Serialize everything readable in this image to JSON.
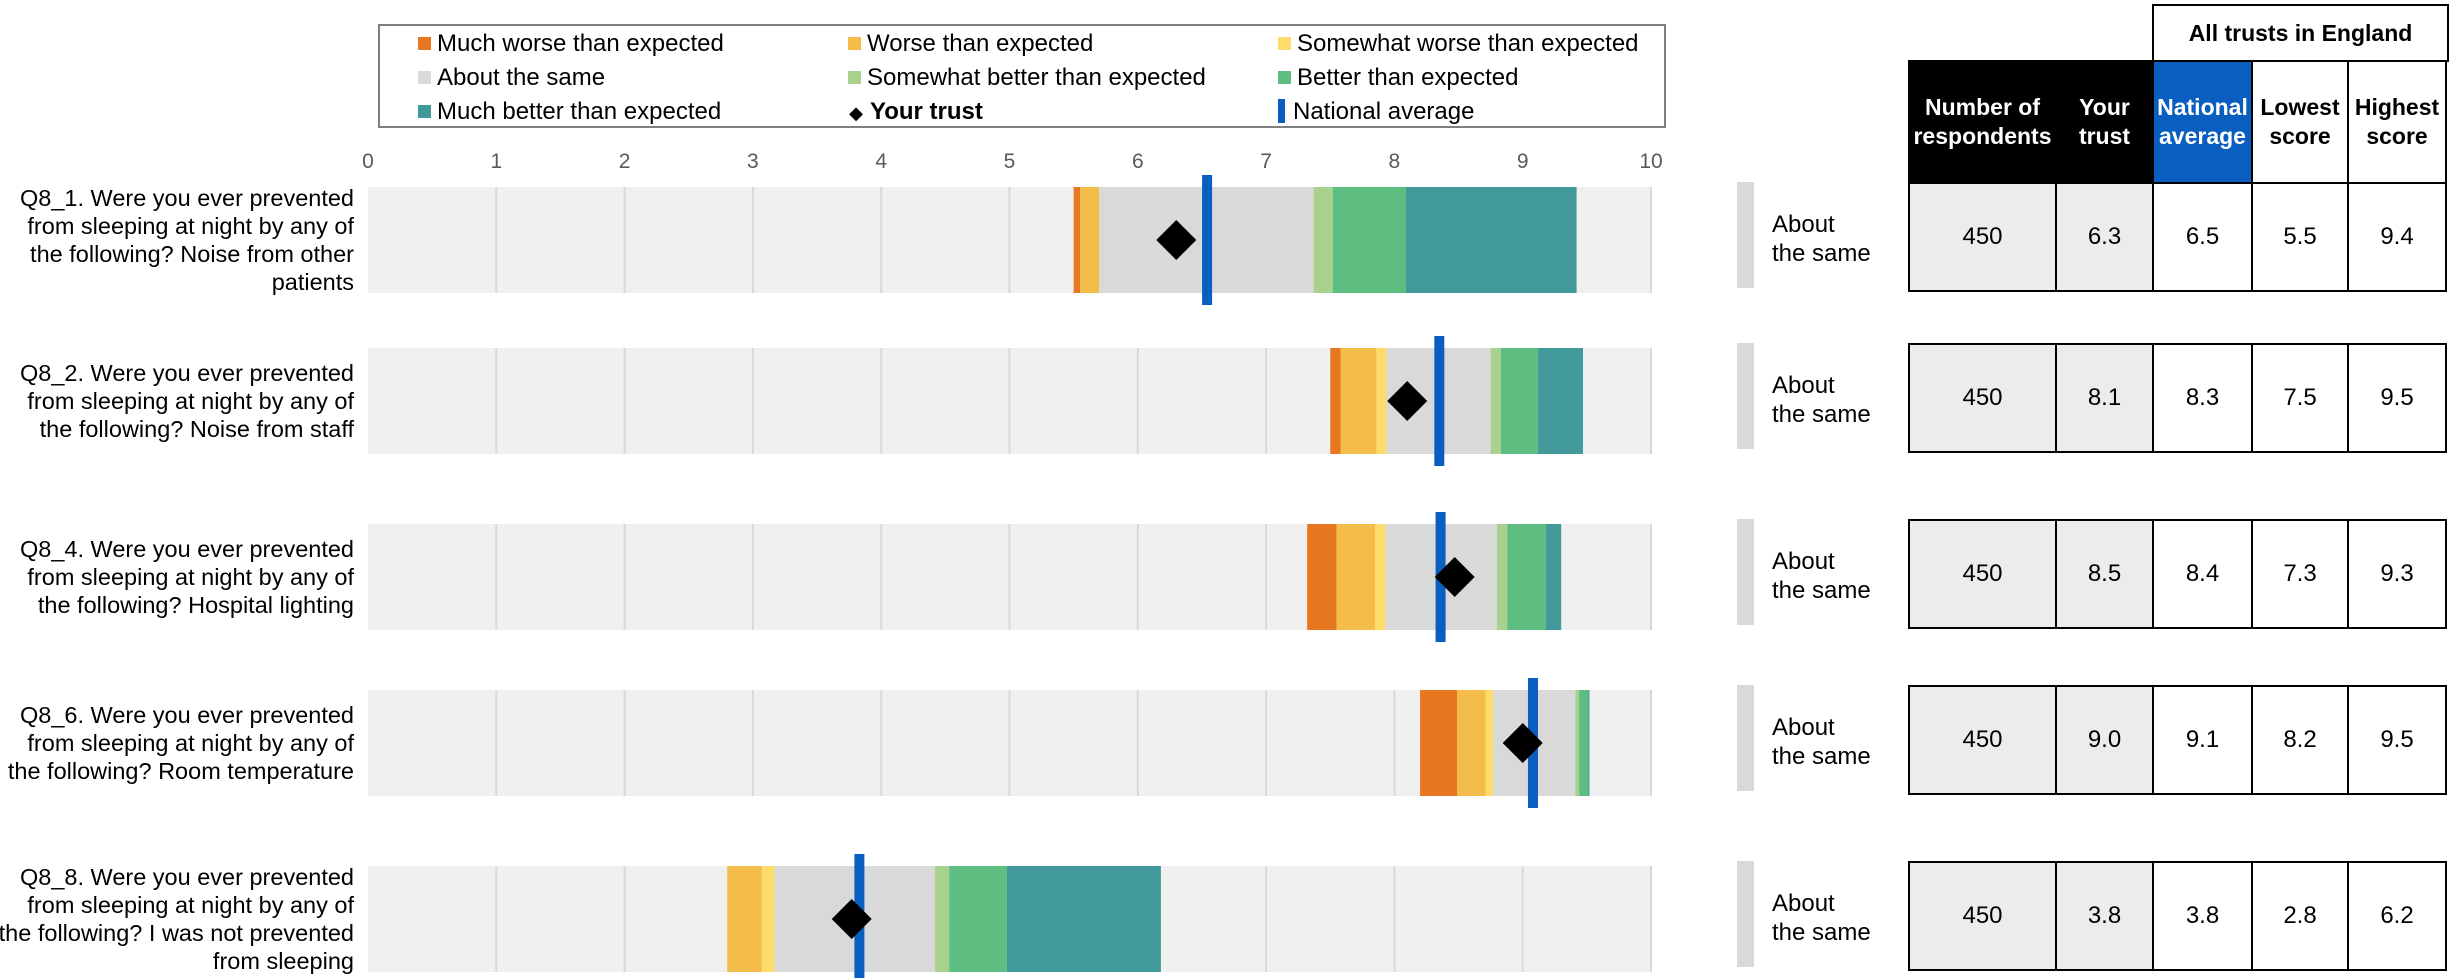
{
  "legend": [
    {
      "label": "Much worse than expected",
      "color": "#e87722",
      "kind": "box"
    },
    {
      "label": "Worse than expected",
      "color": "#f4bd49",
      "kind": "box"
    },
    {
      "label": "Somewhat worse than expected",
      "color": "#fedb6a",
      "kind": "box"
    },
    {
      "label": "About the same",
      "color": "#d9d9d9",
      "kind": "box"
    },
    {
      "label": "Somewhat better than expected",
      "color": "#a9d18e",
      "kind": "box"
    },
    {
      "label": "Better than expected",
      "color": "#5ebd80",
      "kind": "box"
    },
    {
      "label": "Much better than expected",
      "color": "#41999a",
      "kind": "box"
    },
    {
      "label": "Your trust",
      "color": "#000000",
      "kind": "diamond"
    },
    {
      "label": "National average",
      "color": "#0a5ebf",
      "kind": "line"
    }
  ],
  "table": {
    "group_header": "All trusts in England",
    "headers": [
      "Number of respondents",
      "Your trust",
      "National average",
      "Lowest score",
      "Highest score"
    ]
  },
  "chart_data": {
    "type": "bar",
    "xlim": [
      0,
      10
    ],
    "xticks": [
      "0",
      "1",
      "2",
      "3",
      "4",
      "5",
      "6",
      "7",
      "8",
      "9",
      "10"
    ],
    "band_order": [
      "Much worse than expected",
      "Worse than expected",
      "Somewhat worse than expected",
      "About the same",
      "Somewhat better than expected",
      "Better than expected",
      "Much better than expected"
    ],
    "band_colors": [
      "#e87722",
      "#f4bd49",
      "#fedb6a",
      "#d9d9d9",
      "#a9d18e",
      "#5ebd80",
      "#41999a"
    ],
    "background_color": "#f0f0f0",
    "rows": [
      {
        "question": "Q8_1. Were you ever prevented from sleeping at night by any of the following?  Noise from other patients",
        "bands": [
          [
            5.5,
            5.55
          ],
          [
            5.55,
            5.7
          ],
          [
            5.7,
            5.7
          ],
          [
            5.7,
            7.37
          ],
          [
            7.37,
            7.52
          ],
          [
            7.52,
            8.09
          ],
          [
            8.09,
            9.42
          ]
        ],
        "your_trust": 6.3,
        "national_average": 6.54,
        "comparison": "About the same",
        "respondents": "450",
        "trust_score": "6.3",
        "avg_score": "6.5",
        "lowest": "5.5",
        "highest": "9.4"
      },
      {
        "question": "Q8_2. Were you ever prevented from sleeping at night by any of the following?  Noise from staff",
        "bands": [
          [
            7.5,
            7.58
          ],
          [
            7.58,
            7.86
          ],
          [
            7.86,
            7.94
          ],
          [
            7.94,
            8.75
          ],
          [
            8.75,
            8.83
          ],
          [
            8.83,
            9.12
          ],
          [
            9.12,
            9.47
          ]
        ],
        "your_trust": 8.1,
        "national_average": 8.35,
        "comparison": "About the same",
        "respondents": "450",
        "trust_score": "8.1",
        "avg_score": "8.3",
        "lowest": "7.5",
        "highest": "9.5"
      },
      {
        "question": "Q8_4. Were you ever prevented from sleeping at night by any of the following?  Hospital lighting",
        "bands": [
          [
            7.32,
            7.55
          ],
          [
            7.55,
            7.85
          ],
          [
            7.85,
            7.93
          ],
          [
            7.93,
            8.8
          ],
          [
            8.8,
            8.88
          ],
          [
            8.88,
            9.18
          ],
          [
            9.18,
            9.3
          ]
        ],
        "your_trust": 8.47,
        "national_average": 8.36,
        "comparison": "About the same",
        "respondents": "450",
        "trust_score": "8.5",
        "avg_score": "8.4",
        "lowest": "7.3",
        "highest": "9.3"
      },
      {
        "question": "Q8_6. Were you ever prevented from sleeping at night by any of the following?  Room temperature",
        "bands": [
          [
            8.2,
            8.49
          ],
          [
            8.49,
            8.71
          ],
          [
            8.71,
            8.77
          ],
          [
            8.77,
            9.41
          ],
          [
            9.41,
            9.44
          ],
          [
            9.44,
            9.51
          ],
          [
            9.51,
            9.52
          ]
        ],
        "your_trust": 9.0,
        "national_average": 9.08,
        "comparison": "About the same",
        "respondents": "450",
        "trust_score": "9.0",
        "avg_score": "9.1",
        "lowest": "8.2",
        "highest": "9.5"
      },
      {
        "question": "Q8_8. Were you ever prevented from sleeping at night by any of the following?  I was not prevented from sleeping",
        "bands": [
          [
            2.8,
            2.8
          ],
          [
            2.8,
            3.07
          ],
          [
            3.07,
            3.17
          ],
          [
            3.17,
            4.42
          ],
          [
            4.42,
            4.53
          ],
          [
            4.53,
            4.98
          ],
          [
            4.98,
            6.18
          ]
        ],
        "your_trust": 3.77,
        "national_average": 3.83,
        "comparison": "About the same",
        "respondents": "450",
        "trust_score": "3.8",
        "avg_score": "3.8",
        "lowest": "2.8",
        "highest": "6.2"
      }
    ]
  }
}
